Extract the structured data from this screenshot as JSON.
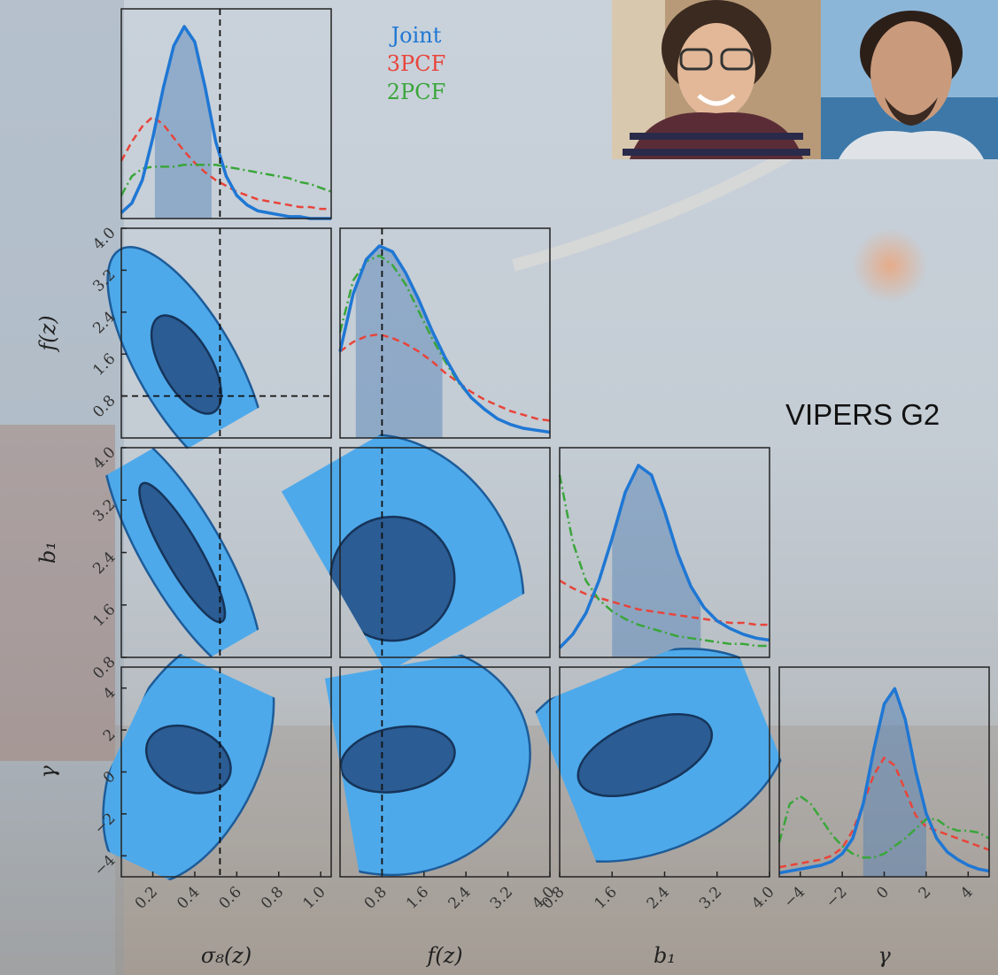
{
  "caption": "VIPERS G2",
  "colors": {
    "joint": "#1f77d4",
    "joint_fill": "#4ea9ea",
    "joint_dark": "#2b5c93",
    "three_pcf": "#e8443a",
    "two_pcf": "#3aa63a"
  },
  "chart_data": {
    "type": "corner",
    "parameters": [
      "σ8(z)",
      "f(z)",
      "b1",
      "γ"
    ],
    "axis_labels": {
      "sigma8": "σ₈(z)",
      "f": "f(z)",
      "b1": "b₁",
      "gamma": "γ"
    },
    "ranges": {
      "sigma8": [
        0.05,
        1.05
      ],
      "f": [
        0.0,
        4.0
      ],
      "b1": [
        0.8,
        4.0
      ],
      "gamma": [
        -5.0,
        5.0
      ]
    },
    "ticks": {
      "sigma8": [
        "0.2",
        "0.4",
        "0.6",
        "0.8",
        "1.0"
      ],
      "f": [
        "0.8",
        "1.6",
        "2.4",
        "3.2",
        "4.0"
      ],
      "b1": [
        "0.8",
        "1.6",
        "2.4",
        "3.2",
        "4.0"
      ],
      "gamma": [
        "−4",
        "−2",
        "0",
        "2",
        "4"
      ]
    },
    "legend": [
      "Joint",
      "3PCF",
      "2PCF"
    ],
    "legend_placement": "top-center",
    "truth": {
      "sigma8": 0.52,
      "f": 0.8
    },
    "marginals": {
      "sigma8": {
        "x": [
          0.05,
          0.1,
          0.15,
          0.2,
          0.25,
          0.3,
          0.35,
          0.4,
          0.45,
          0.5,
          0.55,
          0.6,
          0.65,
          0.7,
          0.75,
          0.8,
          0.85,
          0.9,
          0.95,
          1.0,
          1.05
        ],
        "joint": [
          0.03,
          0.08,
          0.2,
          0.42,
          0.68,
          0.9,
          1.0,
          0.92,
          0.68,
          0.4,
          0.22,
          0.12,
          0.07,
          0.04,
          0.03,
          0.02,
          0.01,
          0.01,
          0.0,
          0.0,
          0.0
        ],
        "three_pcf": [
          0.3,
          0.4,
          0.48,
          0.53,
          0.49,
          0.42,
          0.35,
          0.29,
          0.24,
          0.2,
          0.17,
          0.14,
          0.12,
          0.1,
          0.09,
          0.08,
          0.07,
          0.06,
          0.06,
          0.05,
          0.05
        ],
        "two_pcf": [
          0.12,
          0.22,
          0.26,
          0.27,
          0.27,
          0.27,
          0.28,
          0.28,
          0.28,
          0.28,
          0.27,
          0.26,
          0.25,
          0.24,
          0.23,
          0.22,
          0.21,
          0.19,
          0.18,
          0.16,
          0.14
        ],
        "joint_interval": [
          0.21,
          0.48
        ]
      },
      "f": {
        "x": [
          0.0,
          0.25,
          0.5,
          0.75,
          1.0,
          1.25,
          1.5,
          1.75,
          2.0,
          2.25,
          2.5,
          2.75,
          3.0,
          3.25,
          3.5,
          3.75,
          4.0
        ],
        "joint": [
          0.45,
          0.75,
          0.93,
          1.0,
          0.97,
          0.86,
          0.72,
          0.56,
          0.42,
          0.3,
          0.21,
          0.15,
          0.1,
          0.07,
          0.05,
          0.04,
          0.03
        ],
        "three_pcf": [
          0.45,
          0.5,
          0.53,
          0.54,
          0.52,
          0.49,
          0.45,
          0.4,
          0.34,
          0.29,
          0.24,
          0.2,
          0.17,
          0.14,
          0.12,
          0.1,
          0.09
        ],
        "two_pcf": [
          0.55,
          0.82,
          0.92,
          0.95,
          0.9,
          0.8,
          0.66,
          0.52,
          0.4,
          0.29,
          0.21,
          0.15,
          0.1,
          0.07,
          0.05,
          0.04,
          0.03
        ],
        "joint_interval": [
          0.3,
          1.95
        ]
      },
      "b1": {
        "x": [
          0.8,
          1.0,
          1.2,
          1.4,
          1.6,
          1.8,
          2.0,
          2.2,
          2.4,
          2.6,
          2.8,
          3.0,
          3.2,
          3.4,
          3.6,
          3.8,
          4.0
        ],
        "joint": [
          0.05,
          0.12,
          0.23,
          0.4,
          0.62,
          0.86,
          1.0,
          0.95,
          0.76,
          0.54,
          0.37,
          0.26,
          0.19,
          0.15,
          0.12,
          0.1,
          0.09
        ],
        "three_pcf": [
          0.4,
          0.36,
          0.33,
          0.31,
          0.29,
          0.27,
          0.25,
          0.24,
          0.23,
          0.22,
          0.21,
          0.2,
          0.19,
          0.18,
          0.18,
          0.17,
          0.17
        ],
        "two_pcf": [
          0.95,
          0.6,
          0.4,
          0.3,
          0.24,
          0.2,
          0.17,
          0.15,
          0.13,
          0.11,
          0.1,
          0.09,
          0.08,
          0.07,
          0.07,
          0.06,
          0.06
        ],
        "joint_interval": [
          1.6,
          2.95
        ]
      },
      "gamma": {
        "x": [
          -5.0,
          -4.5,
          -4.0,
          -3.5,
          -3.0,
          -2.5,
          -2.0,
          -1.5,
          -1.0,
          -0.5,
          0.0,
          0.5,
          1.0,
          1.5,
          2.0,
          2.5,
          3.0,
          3.5,
          4.0,
          4.5,
          5.0
        ],
        "joint": [
          0.02,
          0.03,
          0.04,
          0.05,
          0.06,
          0.08,
          0.12,
          0.2,
          0.38,
          0.66,
          0.9,
          0.98,
          0.82,
          0.55,
          0.33,
          0.2,
          0.13,
          0.09,
          0.06,
          0.04,
          0.03
        ],
        "three_pcf": [
          0.05,
          0.06,
          0.07,
          0.08,
          0.09,
          0.11,
          0.15,
          0.24,
          0.38,
          0.53,
          0.62,
          0.58,
          0.45,
          0.32,
          0.26,
          0.24,
          0.22,
          0.2,
          0.18,
          0.16,
          0.14
        ],
        "two_pcf": [
          0.18,
          0.38,
          0.42,
          0.38,
          0.3,
          0.22,
          0.16,
          0.12,
          0.1,
          0.1,
          0.12,
          0.16,
          0.2,
          0.25,
          0.3,
          0.3,
          0.26,
          0.24,
          0.24,
          0.23,
          0.2
        ],
        "joint_interval": [
          -1.0,
          2.0
        ]
      }
    }
  }
}
